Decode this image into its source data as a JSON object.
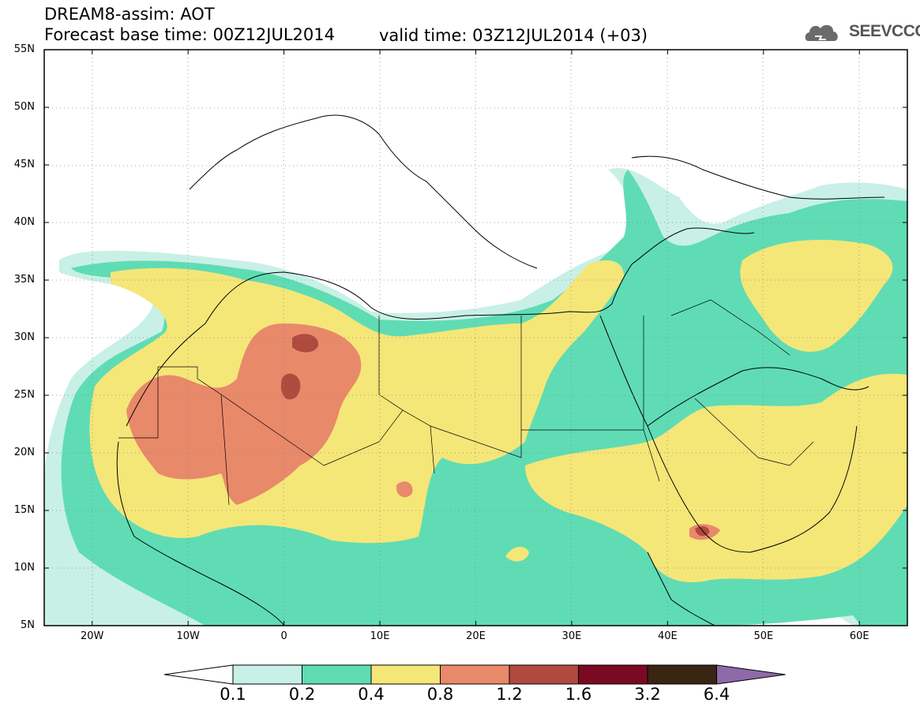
{
  "header": {
    "line1": "DREAM8-assim: AOT",
    "line2": "Forecast base time: 00Z12JUL2014",
    "valid": "valid time: 03Z12JUL2014 (+03)",
    "logo_text": "SEEVCCC"
  },
  "map": {
    "lat_labels": [
      "55N",
      "50N",
      "45N",
      "40N",
      "35N",
      "30N",
      "25N",
      "20N",
      "15N",
      "10N",
      "5N"
    ],
    "lon_labels": [
      "20W",
      "10W",
      "0",
      "10E",
      "20E",
      "30E",
      "40E",
      "50E",
      "60E"
    ],
    "lat_values": [
      55,
      50,
      45,
      40,
      35,
      30,
      25,
      20,
      15,
      10,
      5
    ],
    "lon_values": [
      -20,
      -10,
      0,
      10,
      20,
      30,
      40,
      50,
      60
    ],
    "lon_range": [
      -25,
      65
    ],
    "lat_range": [
      5,
      55
    ],
    "grid": true,
    "field": "Aerosol optical thickness"
  },
  "colorbar": {
    "levels": [
      "0.1",
      "0.2",
      "0.4",
      "0.8",
      "1.2",
      "1.6",
      "3.2",
      "6.4"
    ],
    "colors": [
      "#ffffff",
      "#c8f0e6",
      "#5fdcb4",
      "#f5e678",
      "#e8896a",
      "#b04a3e",
      "#7a0a24",
      "#3a2412",
      "#8e6aa8"
    ]
  },
  "palette": {
    "c1": "#c8f0e6",
    "c2": "#5fdcb4",
    "c3": "#f5e678",
    "c4": "#e8896a",
    "c5": "#b04a3e"
  }
}
